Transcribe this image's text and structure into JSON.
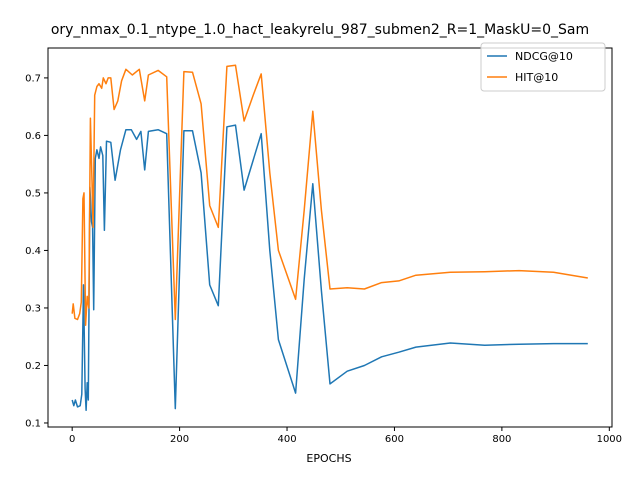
{
  "chart_data": {
    "type": "line",
    "title": "ory_nmax_0.1_ntype_1.0_hact_leakyrelu_987_submen2_R=1_MaskU=0_Sam",
    "xlabel": "EPOCHS",
    "ylabel": "",
    "xlim": [
      -45,
      1005
    ],
    "ylim": [
      0.093,
      0.752
    ],
    "xticks": [
      0,
      200,
      400,
      600,
      800,
      1000
    ],
    "yticks": [
      0.1,
      0.2,
      0.3,
      0.4,
      0.5,
      0.6,
      0.7
    ],
    "grid": false,
    "legend_position": "top-right",
    "series": [
      {
        "name": "NDCG@10",
        "color": "#1f77b4",
        "points": [
          [
            0,
            0.14
          ],
          [
            3,
            0.13
          ],
          [
            6,
            0.14
          ],
          [
            10,
            0.128
          ],
          [
            15,
            0.13
          ],
          [
            18,
            0.15
          ],
          [
            21,
            0.34
          ],
          [
            24,
            0.16
          ],
          [
            26,
            0.122
          ],
          [
            28,
            0.17
          ],
          [
            30,
            0.14
          ],
          [
            33,
            0.51
          ],
          [
            36,
            0.45
          ],
          [
            38,
            0.44
          ],
          [
            40,
            0.297
          ],
          [
            43,
            0.56
          ],
          [
            46,
            0.575
          ],
          [
            50,
            0.56
          ],
          [
            53,
            0.58
          ],
          [
            57,
            0.565
          ],
          [
            60,
            0.435
          ],
          [
            64,
            0.59
          ],
          [
            72,
            0.588
          ],
          [
            80,
            0.522
          ],
          [
            90,
            0.575
          ],
          [
            100,
            0.61
          ],
          [
            110,
            0.61
          ],
          [
            120,
            0.593
          ],
          [
            128,
            0.607
          ],
          [
            135,
            0.54
          ],
          [
            142,
            0.607
          ],
          [
            160,
            0.61
          ],
          [
            176,
            0.603
          ],
          [
            192,
            0.125
          ],
          [
            208,
            0.608
          ],
          [
            224,
            0.608
          ],
          [
            240,
            0.535
          ],
          [
            256,
            0.34
          ],
          [
            272,
            0.304
          ],
          [
            288,
            0.615
          ],
          [
            304,
            0.618
          ],
          [
            320,
            0.505
          ],
          [
            337,
            0.557
          ],
          [
            352,
            0.603
          ],
          [
            368,
            0.4
          ],
          [
            384,
            0.245
          ],
          [
            416,
            0.152
          ],
          [
            432,
            0.35
          ],
          [
            448,
            0.516
          ],
          [
            464,
            0.33
          ],
          [
            480,
            0.168
          ],
          [
            512,
            0.19
          ],
          [
            544,
            0.2
          ],
          [
            576,
            0.215
          ],
          [
            608,
            0.223
          ],
          [
            640,
            0.232
          ],
          [
            704,
            0.239
          ],
          [
            768,
            0.235
          ],
          [
            832,
            0.237
          ],
          [
            896,
            0.238
          ],
          [
            960,
            0.238
          ]
        ]
      },
      {
        "name": "HIT@10",
        "color": "#ff7f0e",
        "points": [
          [
            0,
            0.29
          ],
          [
            2,
            0.307
          ],
          [
            5,
            0.282
          ],
          [
            10,
            0.28
          ],
          [
            14,
            0.29
          ],
          [
            17,
            0.31
          ],
          [
            20,
            0.49
          ],
          [
            22,
            0.5
          ],
          [
            25,
            0.27
          ],
          [
            28,
            0.32
          ],
          [
            31,
            0.3
          ],
          [
            34,
            0.63
          ],
          [
            37,
            0.52
          ],
          [
            39,
            0.44
          ],
          [
            42,
            0.67
          ],
          [
            46,
            0.685
          ],
          [
            50,
            0.69
          ],
          [
            55,
            0.682
          ],
          [
            58,
            0.7
          ],
          [
            63,
            0.69
          ],
          [
            67,
            0.7
          ],
          [
            72,
            0.7
          ],
          [
            78,
            0.645
          ],
          [
            85,
            0.66
          ],
          [
            92,
            0.695
          ],
          [
            100,
            0.715
          ],
          [
            112,
            0.705
          ],
          [
            125,
            0.715
          ],
          [
            135,
            0.66
          ],
          [
            142,
            0.705
          ],
          [
            160,
            0.713
          ],
          [
            176,
            0.702
          ],
          [
            192,
            0.28
          ],
          [
            208,
            0.711
          ],
          [
            224,
            0.71
          ],
          [
            240,
            0.655
          ],
          [
            256,
            0.478
          ],
          [
            272,
            0.44
          ],
          [
            288,
            0.72
          ],
          [
            304,
            0.722
          ],
          [
            320,
            0.625
          ],
          [
            337,
            0.67
          ],
          [
            352,
            0.707
          ],
          [
            368,
            0.535
          ],
          [
            384,
            0.4
          ],
          [
            416,
            0.315
          ],
          [
            432,
            0.47
          ],
          [
            448,
            0.642
          ],
          [
            464,
            0.47
          ],
          [
            480,
            0.333
          ],
          [
            512,
            0.335
          ],
          [
            544,
            0.333
          ],
          [
            576,
            0.344
          ],
          [
            608,
            0.347
          ],
          [
            640,
            0.357
          ],
          [
            704,
            0.362
          ],
          [
            768,
            0.363
          ],
          [
            832,
            0.365
          ],
          [
            896,
            0.362
          ],
          [
            960,
            0.352
          ]
        ]
      }
    ]
  }
}
